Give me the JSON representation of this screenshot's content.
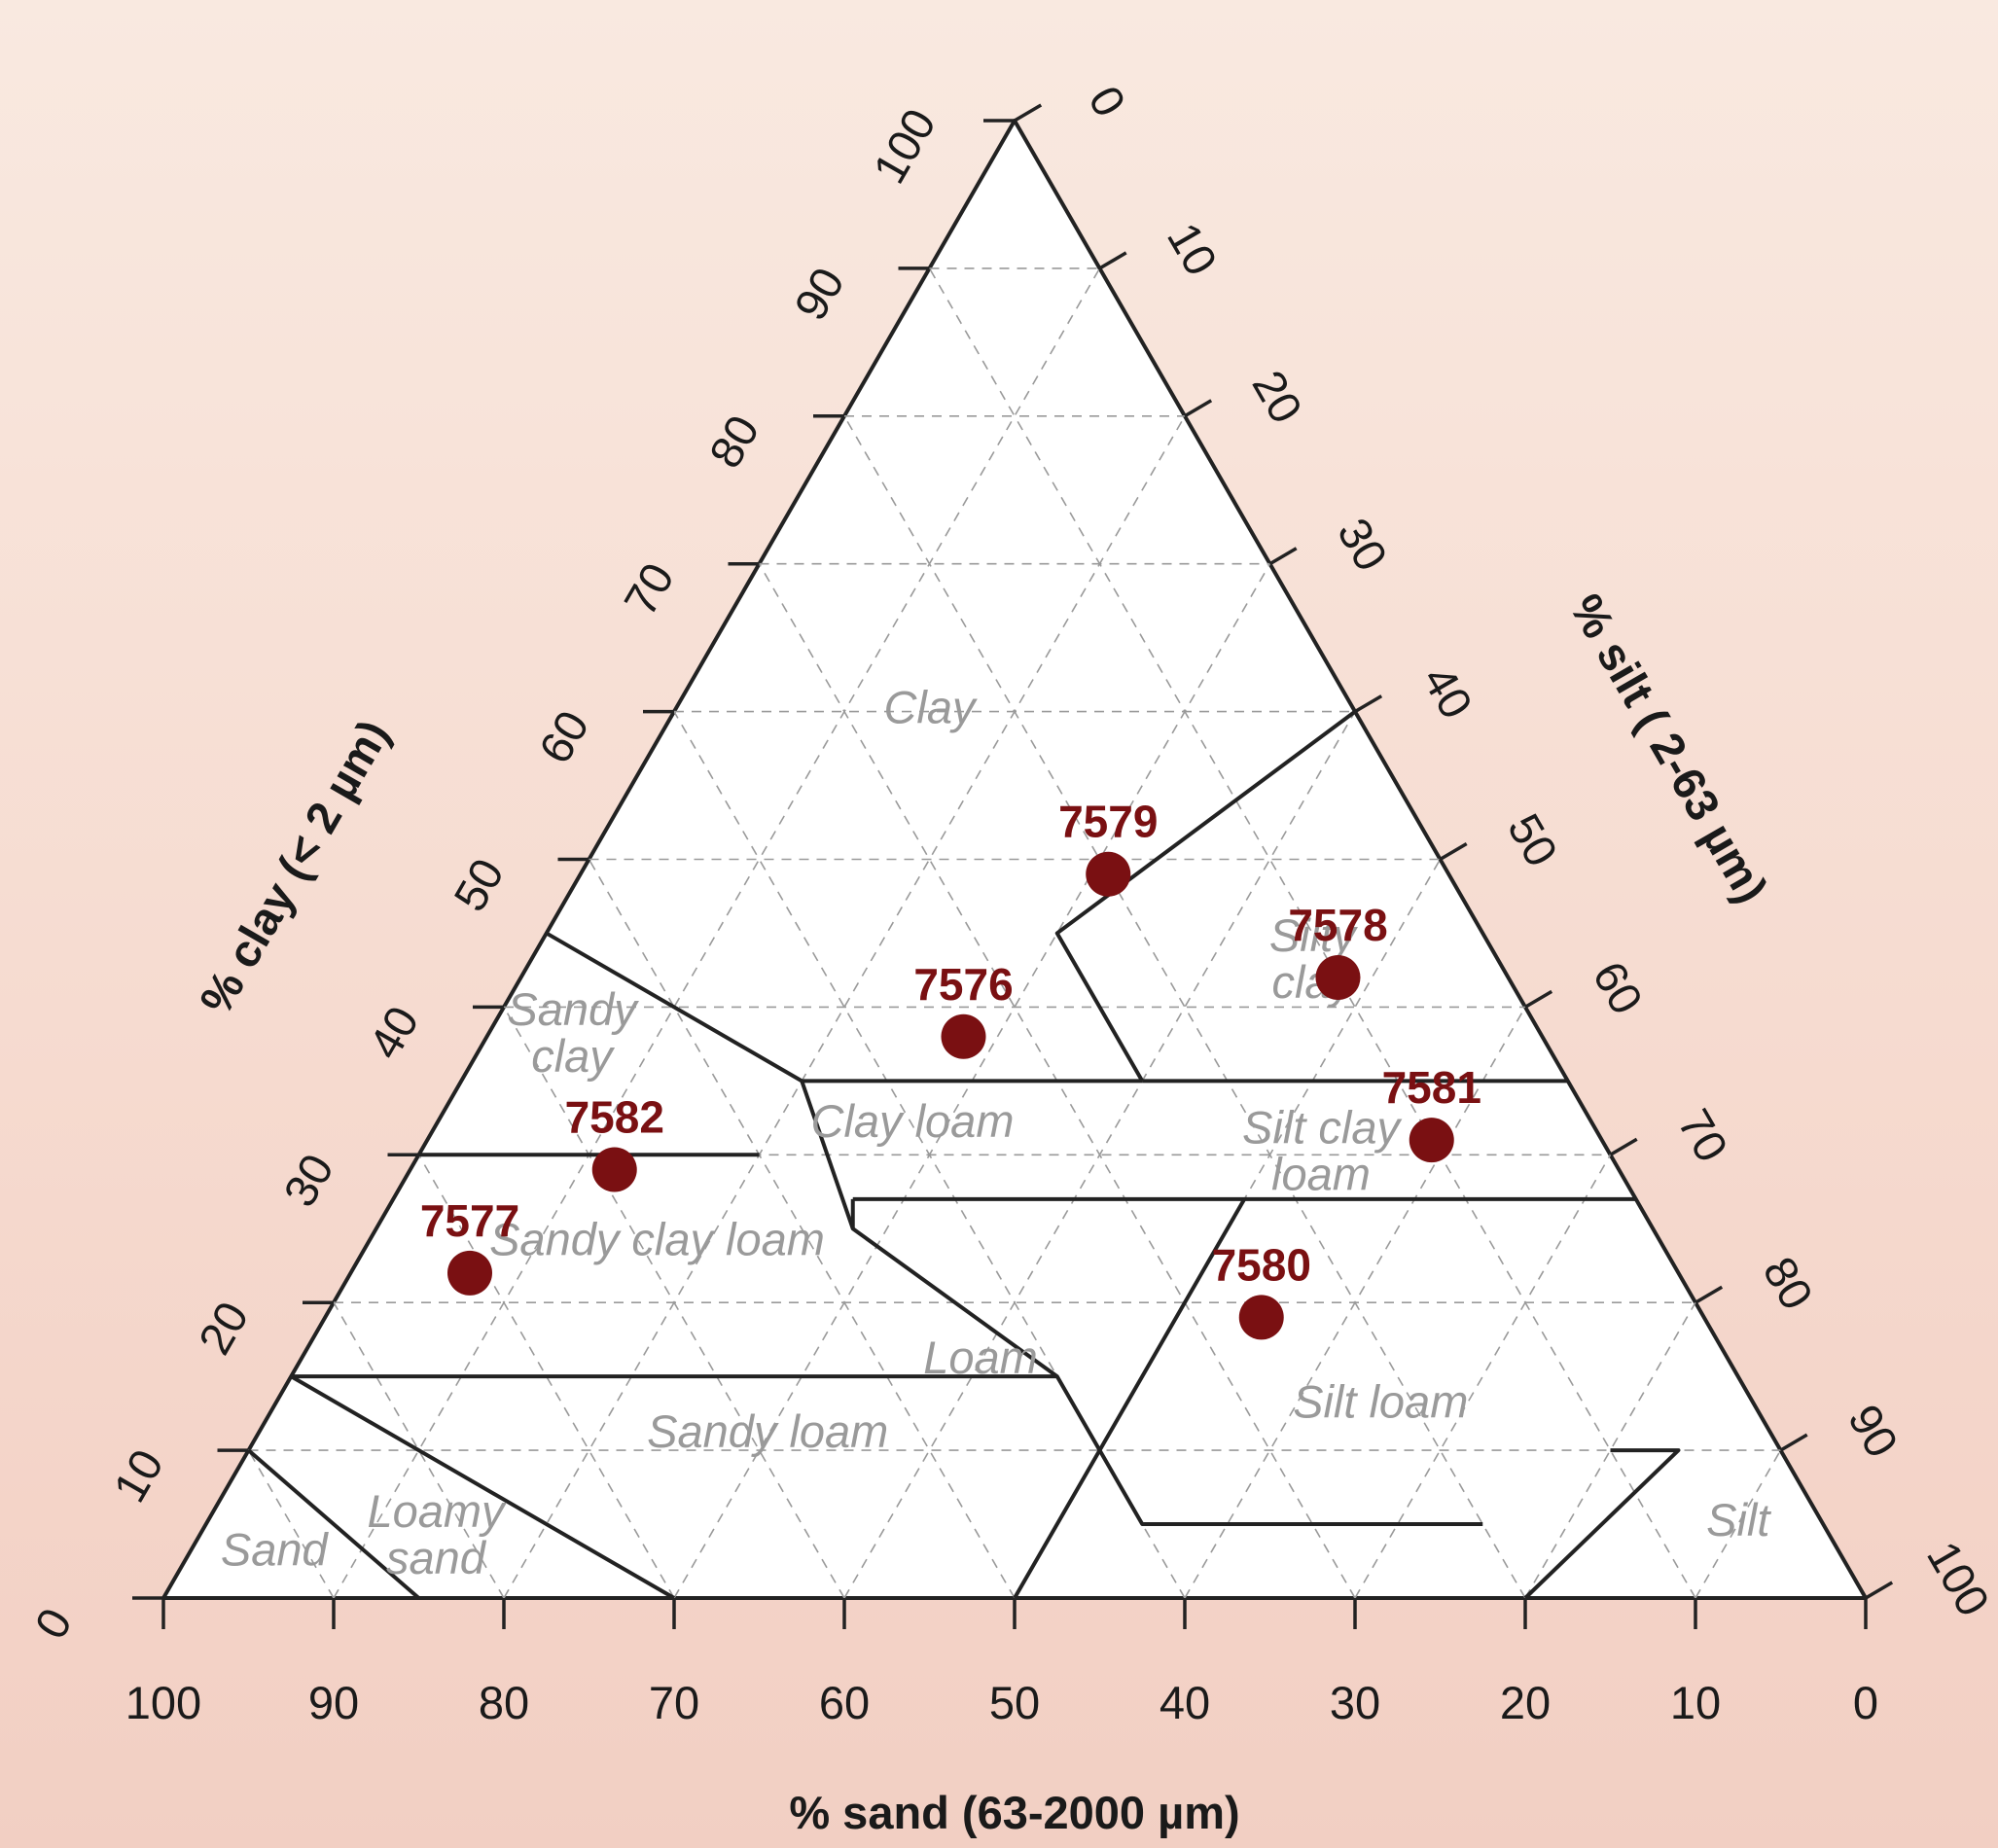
{
  "chart_data": {
    "type": "scatter",
    "subtype": "ternary-soil-texture",
    "axes": {
      "sand": {
        "label": "% sand (63-2000 µm)",
        "ticks": [
          100,
          90,
          80,
          70,
          60,
          50,
          40,
          30,
          20,
          10,
          0
        ]
      },
      "clay": {
        "label": "% clay (< 2 µm)",
        "ticks": [
          0,
          10,
          20,
          30,
          40,
          50,
          60,
          70,
          80,
          90,
          100
        ]
      },
      "silt": {
        "label": "% silt ( 2-63 µm)",
        "ticks": [
          0,
          10,
          20,
          30,
          40,
          50,
          60,
          70,
          80,
          90,
          100
        ]
      }
    },
    "grid": true,
    "colors": {
      "point": "#7a1012",
      "region_label": "#9a9a9a",
      "frame": "#222222"
    },
    "regions": [
      {
        "name": "Clay",
        "label": [
          "Clay"
        ]
      },
      {
        "name": "Silty clay",
        "label": [
          "Silty",
          "clay"
        ]
      },
      {
        "name": "Sandy clay",
        "label": [
          "Sandy",
          "clay"
        ]
      },
      {
        "name": "Clay loam",
        "label": [
          "Clay loam"
        ]
      },
      {
        "name": "Silt clay loam",
        "label": [
          "Silt clay",
          "loam"
        ]
      },
      {
        "name": "Sandy clay loam",
        "label": [
          "Sandy clay loam"
        ]
      },
      {
        "name": "Loam",
        "label": [
          "Loam"
        ]
      },
      {
        "name": "Silt loam",
        "label": [
          "Silt loam"
        ]
      },
      {
        "name": "Sandy loam",
        "label": [
          "Sandy loam"
        ]
      },
      {
        "name": "Loamy sand",
        "label": [
          "Loamy",
          "sand"
        ]
      },
      {
        "name": "Sand",
        "label": [
          "Sand"
        ]
      },
      {
        "name": "Silt",
        "label": [
          "Silt"
        ]
      }
    ],
    "points": [
      {
        "id": "7579",
        "sand": 20,
        "silt": 31,
        "clay": 49
      },
      {
        "id": "7578",
        "sand": 10,
        "silt": 48,
        "clay": 42
      },
      {
        "id": "7576",
        "sand": 34,
        "silt": 28,
        "clay": 38
      },
      {
        "id": "7582",
        "sand": 59,
        "silt": 12,
        "clay": 29
      },
      {
        "id": "7581",
        "sand": 10,
        "silt": 59,
        "clay": 31
      },
      {
        "id": "7580",
        "sand": 26,
        "silt": 55,
        "clay": 19
      },
      {
        "id": "7577",
        "sand": 71,
        "silt": 7,
        "clay": 22
      }
    ]
  }
}
